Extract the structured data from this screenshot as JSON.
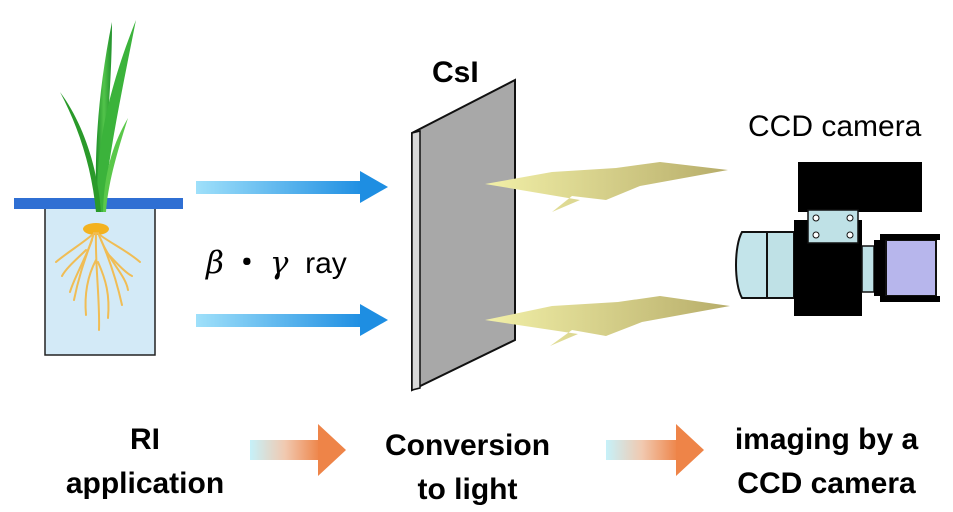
{
  "labels": {
    "csi": "CsI",
    "camera": "CCD camera",
    "ray_beta": "β",
    "ray_dot": "・",
    "ray_gamma": "γ",
    "ray_word": "ray"
  },
  "steps": [
    {
      "line1": "RI",
      "line2": "application"
    },
    {
      "line1": "Conversion",
      "line2": "to light"
    },
    {
      "line1": "imaging by a",
      "line2": "CCD camera"
    }
  ],
  "colors": {
    "ray_arrow": "#2b9be6",
    "step_arrow": "#ef8a50",
    "water": "#cfe8f6",
    "lid": "#2f6fd3",
    "leaf": "#2ea82e",
    "root": "#f0c05a",
    "scintillator": "#a8a8a8",
    "light_bolt": "#d8d08a",
    "lens": "#bfe1e6",
    "lens_rear": "#b4b4ec"
  }
}
